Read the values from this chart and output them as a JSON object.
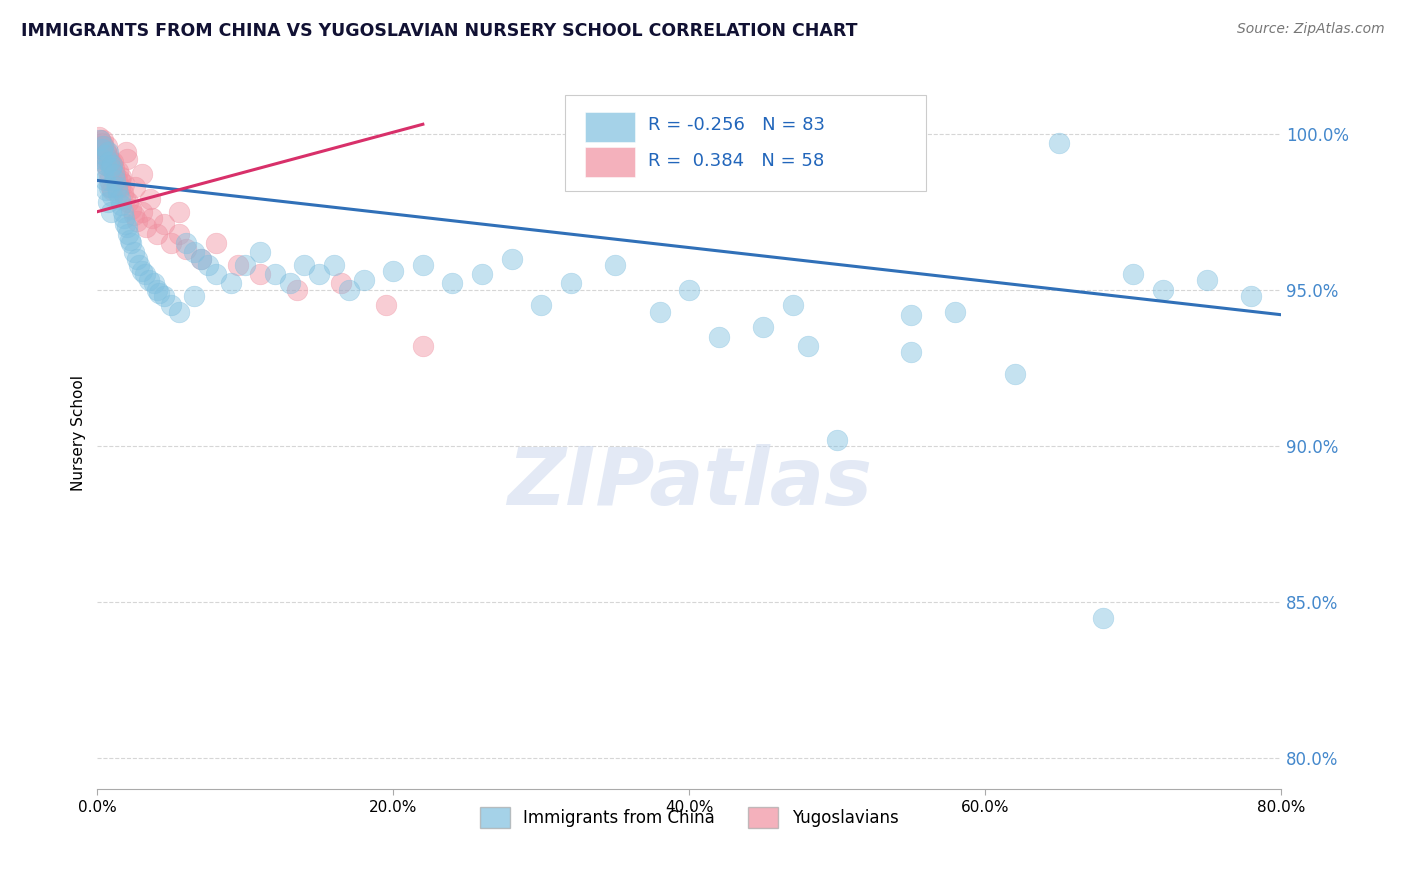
{
  "title": "IMMIGRANTS FROM CHINA VS YUGOSLAVIAN NURSERY SCHOOL CORRELATION CHART",
  "source": "Source: ZipAtlas.com",
  "ylabel": "Nursery School",
  "xlim": [
    0.0,
    80.0
  ],
  "ylim": [
    79.0,
    101.8
  ],
  "yticks": [
    80.0,
    85.0,
    90.0,
    95.0,
    100.0
  ],
  "xticks": [
    0.0,
    20.0,
    40.0,
    60.0,
    80.0
  ],
  "blue_R": -0.256,
  "blue_N": 83,
  "pink_R": 0.384,
  "pink_N": 58,
  "blue_color": "#7fbfdf",
  "pink_color": "#f090a0",
  "blue_line_color": "#3070b8",
  "pink_line_color": "#d8306a",
  "watermark": "ZIPatlas",
  "legend_label_blue": "Immigrants from China",
  "legend_label_pink": "Yugoslavians",
  "blue_scatter_x": [
    0.2,
    0.3,
    0.3,
    0.4,
    0.4,
    0.5,
    0.5,
    0.6,
    0.6,
    0.7,
    0.7,
    0.8,
    0.8,
    0.9,
    0.9,
    1.0,
    1.0,
    1.1,
    1.2,
    1.3,
    1.4,
    1.5,
    1.6,
    1.7,
    1.8,
    1.9,
    2.0,
    2.1,
    2.2,
    2.3,
    2.5,
    2.7,
    2.8,
    3.0,
    3.2,
    3.5,
    3.8,
    4.0,
    4.2,
    4.5,
    5.0,
    5.5,
    6.0,
    6.5,
    7.0,
    7.5,
    8.0,
    9.0,
    10.0,
    11.0,
    12.0,
    13.0,
    14.0,
    15.0,
    16.0,
    17.0,
    18.0,
    20.0,
    22.0,
    24.0,
    26.0,
    28.0,
    30.0,
    32.0,
    35.0,
    38.0,
    40.0,
    42.0,
    45.0,
    48.0,
    50.0,
    55.0,
    58.0,
    62.0,
    65.0,
    68.0,
    70.0,
    72.0,
    75.0,
    78.0,
    6.5,
    47.0,
    55.0
  ],
  "blue_scatter_y": [
    99.8,
    99.5,
    99.2,
    99.6,
    98.8,
    99.3,
    98.5,
    99.0,
    98.2,
    99.4,
    97.8,
    99.1,
    98.3,
    98.9,
    97.5,
    99.0,
    98.0,
    98.7,
    98.5,
    98.3,
    98.1,
    97.9,
    97.7,
    97.5,
    97.3,
    97.1,
    97.0,
    96.8,
    96.6,
    96.5,
    96.2,
    96.0,
    95.8,
    95.6,
    95.5,
    95.3,
    95.2,
    95.0,
    94.9,
    94.8,
    94.5,
    94.3,
    96.5,
    96.2,
    96.0,
    95.8,
    95.5,
    95.2,
    95.8,
    96.2,
    95.5,
    95.2,
    95.8,
    95.5,
    95.8,
    95.0,
    95.3,
    95.6,
    95.8,
    95.2,
    95.5,
    96.0,
    94.5,
    95.2,
    95.8,
    94.3,
    95.0,
    93.5,
    93.8,
    93.2,
    90.2,
    93.0,
    94.3,
    92.3,
    99.7,
    84.5,
    95.5,
    95.0,
    95.3,
    94.8,
    94.8,
    94.5,
    94.2
  ],
  "pink_scatter_x": [
    0.1,
    0.2,
    0.2,
    0.3,
    0.3,
    0.4,
    0.4,
    0.5,
    0.5,
    0.6,
    0.6,
    0.7,
    0.7,
    0.8,
    0.8,
    0.9,
    0.9,
    1.0,
    1.0,
    1.1,
    1.2,
    1.3,
    1.4,
    1.5,
    1.6,
    1.7,
    1.8,
    1.9,
    2.0,
    2.1,
    2.3,
    2.5,
    2.7,
    3.0,
    3.3,
    3.7,
    4.0,
    4.5,
    5.0,
    5.5,
    6.0,
    7.0,
    8.0,
    9.5,
    11.0,
    13.5,
    16.5,
    19.5,
    0.35,
    0.65,
    1.05,
    1.55,
    1.95,
    2.55,
    3.05,
    3.55,
    5.5,
    22.0
  ],
  "pink_scatter_y": [
    99.9,
    99.8,
    99.6,
    99.7,
    99.5,
    99.6,
    99.3,
    99.5,
    99.2,
    99.4,
    99.0,
    99.3,
    98.8,
    99.2,
    98.5,
    99.1,
    98.3,
    99.0,
    98.2,
    98.9,
    98.7,
    98.5,
    98.8,
    98.3,
    98.6,
    98.1,
    98.4,
    97.9,
    99.2,
    97.8,
    97.6,
    97.4,
    97.2,
    97.5,
    97.0,
    97.3,
    96.8,
    97.1,
    96.5,
    96.8,
    96.3,
    96.0,
    96.5,
    95.8,
    95.5,
    95.0,
    95.2,
    94.5,
    99.8,
    99.6,
    99.1,
    98.5,
    99.4,
    98.3,
    98.7,
    97.9,
    97.5,
    93.2
  ],
  "blue_trend_x": [
    0.0,
    80.0
  ],
  "blue_trend_y": [
    98.5,
    94.2
  ],
  "pink_trend_x": [
    0.0,
    22.0
  ],
  "pink_trend_y": [
    97.5,
    100.3
  ]
}
